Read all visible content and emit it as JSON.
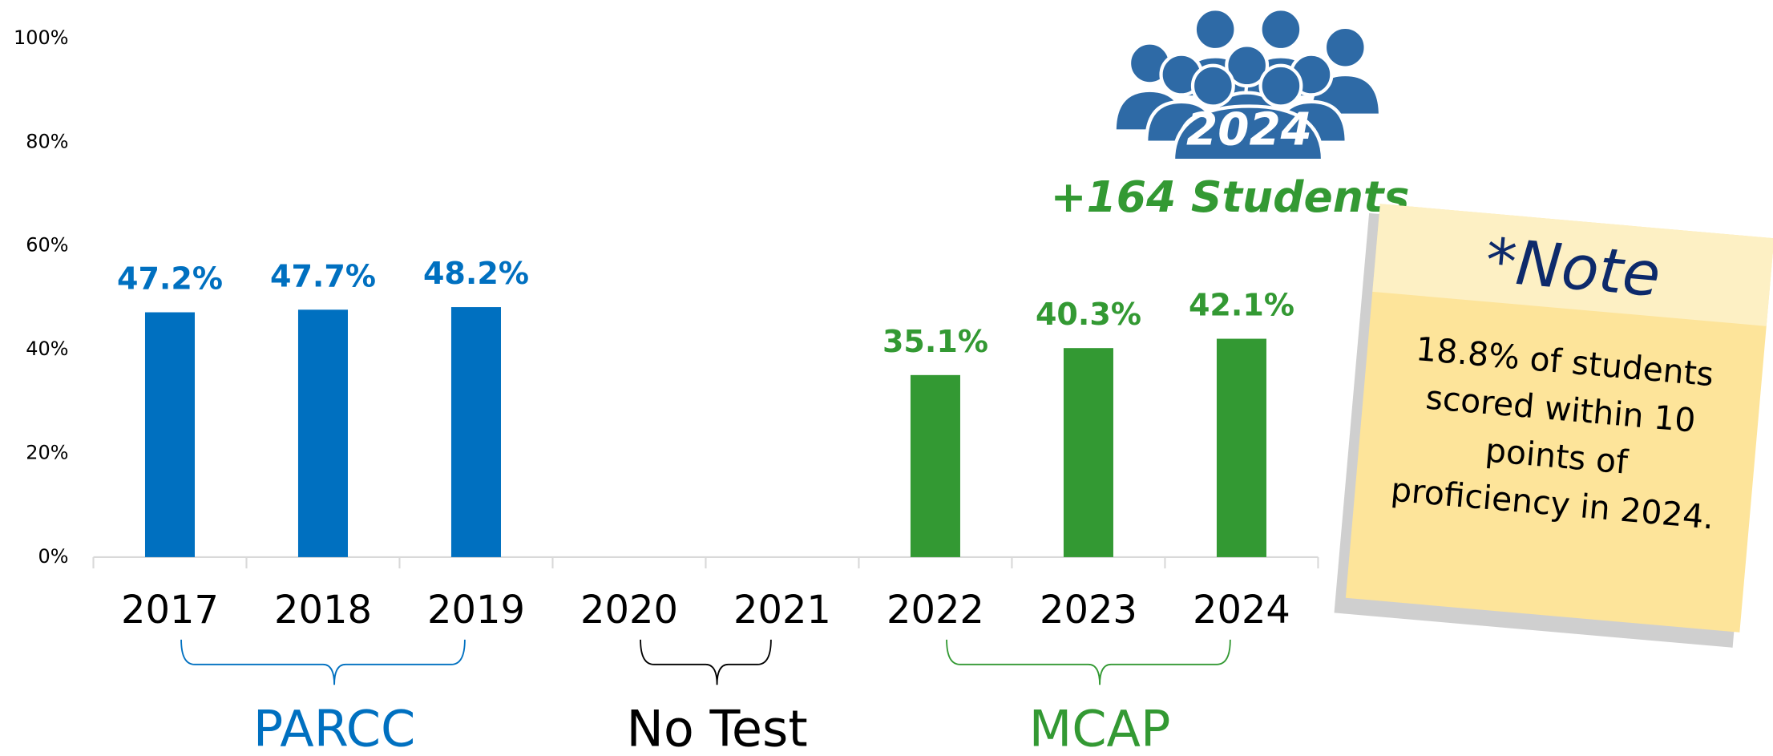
{
  "chart_data": {
    "type": "bar",
    "categories": [
      "2017",
      "2018",
      "2019",
      "2020",
      "2021",
      "2022",
      "2023",
      "2024"
    ],
    "values": [
      47.2,
      47.7,
      48.2,
      null,
      null,
      35.1,
      40.3,
      42.1
    ],
    "value_labels": [
      "47.2%",
      "47.7%",
      "48.2%",
      null,
      null,
      "35.1%",
      "40.3%",
      "42.1%"
    ],
    "colors": [
      "#0070c0",
      "#0070c0",
      "#0070c0",
      null,
      null,
      "#339933",
      "#339933",
      "#339933"
    ],
    "ylim": [
      0,
      100
    ],
    "yticks": [
      {
        "value": 0,
        "label": "0%"
      },
      {
        "value": 20,
        "label": "20%"
      },
      {
        "value": 40,
        "label": "40%"
      },
      {
        "value": 60,
        "label": "60%"
      },
      {
        "value": 80,
        "label": "80%"
      },
      {
        "value": 100,
        "label": "100%"
      }
    ],
    "groups": [
      {
        "name": "PARCC",
        "color": "#0070c0"
      },
      {
        "name": "No Test",
        "color": "#000000"
      },
      {
        "name": "MCAP",
        "color": "#339933"
      }
    ],
    "badge": {
      "year": "2024",
      "caption": "+164 Students"
    },
    "note": {
      "title": "*Note",
      "lines": [
        "18.8% of students",
        "scored within 10",
        "points of",
        "proficiency in 2024."
      ]
    }
  }
}
